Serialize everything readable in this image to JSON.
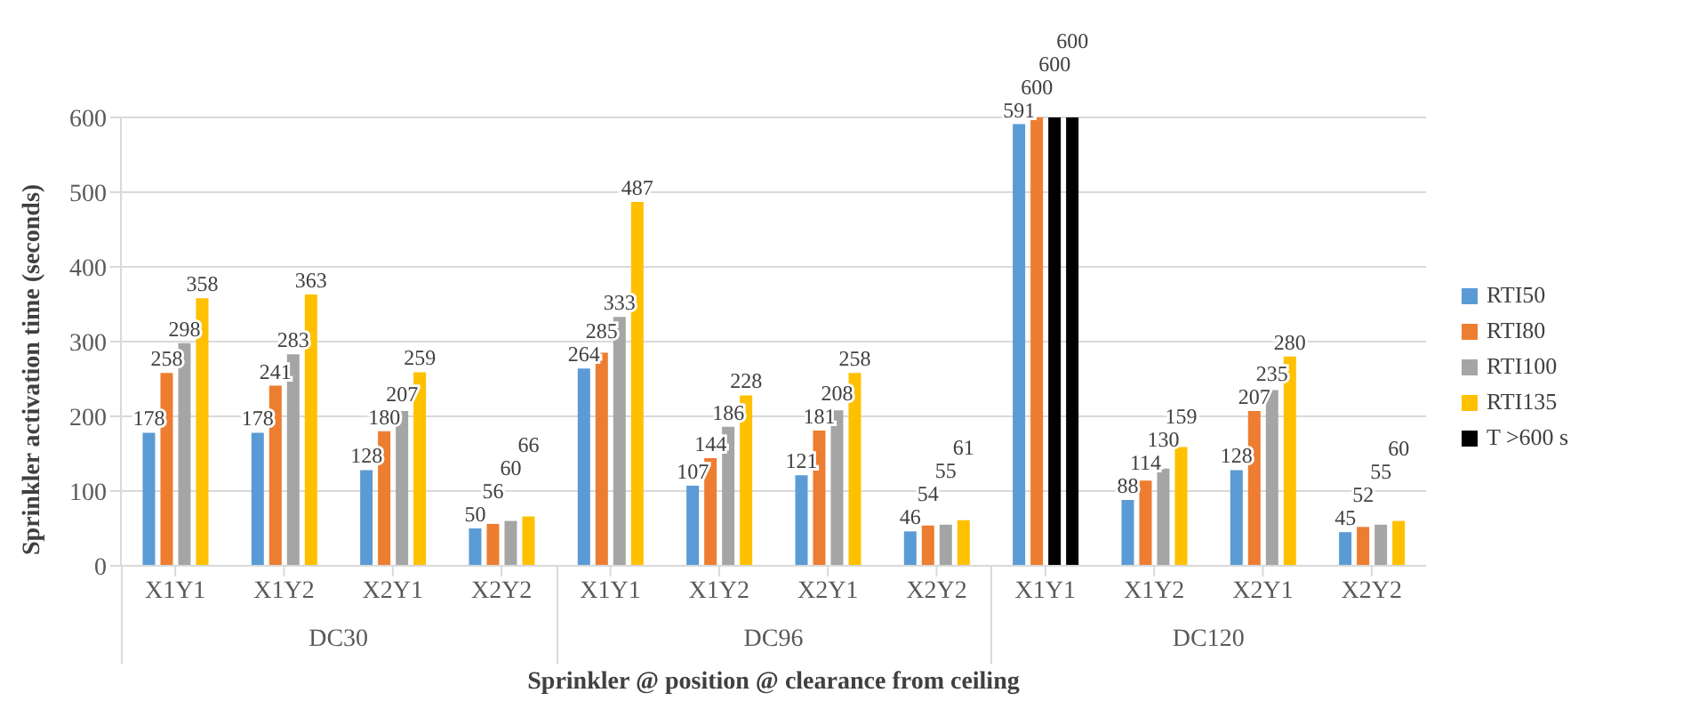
{
  "chart_data": {
    "type": "bar",
    "ylabel": "Sprinkler activation time (seconds)",
    "xlabel": "Sprinkler @ position @ clearance from ceiling",
    "categories": [
      "X1Y1",
      "X1Y2",
      "X2Y1",
      "X2Y2",
      "X1Y1",
      "X1Y2",
      "X2Y1",
      "X2Y2",
      "X1Y1",
      "X1Y2",
      "X2Y1",
      "X2Y2"
    ],
    "annotations": [
      "DC30",
      "DC96",
      "DC120"
    ],
    "series": [
      {
        "name": "RTI50",
        "color": "#5b9bd5",
        "values": [
          178,
          178,
          128,
          50,
          264,
          107,
          121,
          46,
          591,
          88,
          128,
          45
        ]
      },
      {
        "name": "RTI80",
        "color": "#ed7d31",
        "values": [
          258,
          241,
          180,
          56,
          285,
          144,
          181,
          54,
          600,
          114,
          207,
          52
        ]
      },
      {
        "name": "RTI100",
        "color": "#a5a5a5",
        "colors": [
          "#a5a5a5",
          "#a5a5a5",
          "#a5a5a5",
          "#a5a5a5",
          "#a5a5a5",
          "#a5a5a5",
          "#a5a5a5",
          "#a5a5a5",
          "#000000",
          "#a5a5a5",
          "#a5a5a5",
          "#a5a5a5"
        ],
        "values": [
          298,
          283,
          207,
          60,
          333,
          186,
          208,
          55,
          600,
          130,
          235,
          55
        ]
      },
      {
        "name": "RTI135",
        "color": "#ffc000",
        "colors": [
          "#ffc000",
          "#ffc000",
          "#ffc000",
          "#ffc000",
          "#ffc000",
          "#ffc000",
          "#ffc000",
          "#ffc000",
          "#000000",
          "#ffc000",
          "#ffc000",
          "#ffc000"
        ],
        "values": [
          358,
          363,
          259,
          66,
          487,
          228,
          258,
          61,
          600,
          159,
          280,
          60
        ]
      },
      {
        "name": "T >600 s",
        "color": "#000000",
        "values": [
          null,
          null,
          null,
          null,
          null,
          null,
          null,
          null,
          null,
          null,
          null,
          null
        ]
      }
    ],
    "ylim": [
      0,
      600
    ],
    "yticks": [
      0,
      100,
      200,
      300,
      400,
      500,
      600
    ],
    "grid": "y",
    "legend": "right",
    "data_labels": true
  }
}
